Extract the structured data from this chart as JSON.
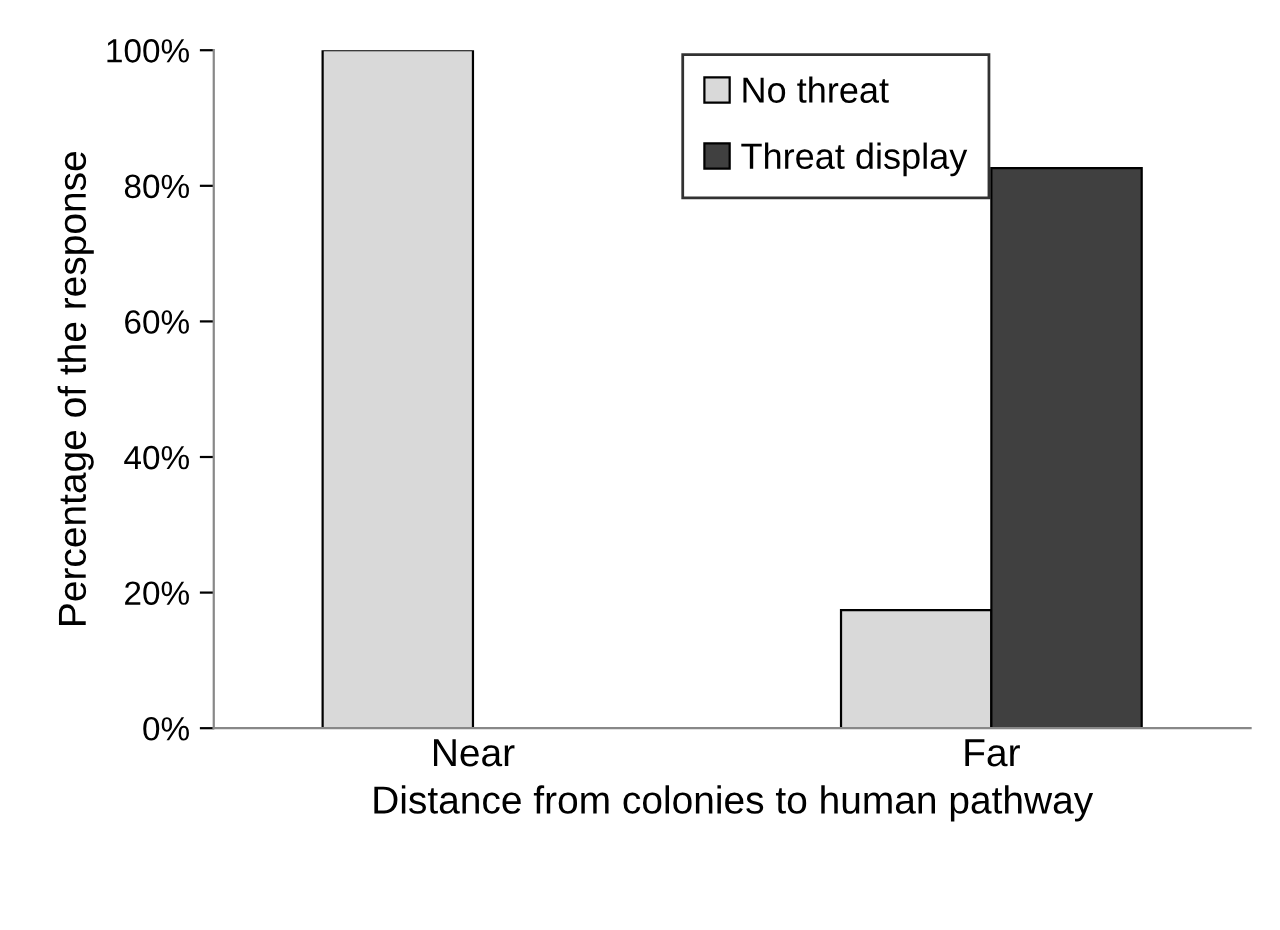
{
  "chart_data": {
    "type": "bar",
    "xlabel": "Distance from colonies to human pathway",
    "ylabel": "Percentage of the response",
    "categories": [
      "Near",
      "Far"
    ],
    "series": [
      {
        "name": "No threat",
        "color": "#d9d9d9",
        "values": [
          100,
          17.4
        ]
      },
      {
        "name": "Threat display",
        "color": "#404040",
        "values": [
          null,
          82.6
        ]
      }
    ],
    "ylim": [
      0,
      100
    ],
    "yticks": [
      {
        "value": 0,
        "label": "0%"
      },
      {
        "value": 20,
        "label": "20%"
      },
      {
        "value": 40,
        "label": "40%"
      },
      {
        "value": 60,
        "label": "60%"
      },
      {
        "value": 80,
        "label": "80%"
      },
      {
        "value": 100,
        "label": "100%"
      }
    ],
    "grid": false,
    "legend": "top"
  }
}
